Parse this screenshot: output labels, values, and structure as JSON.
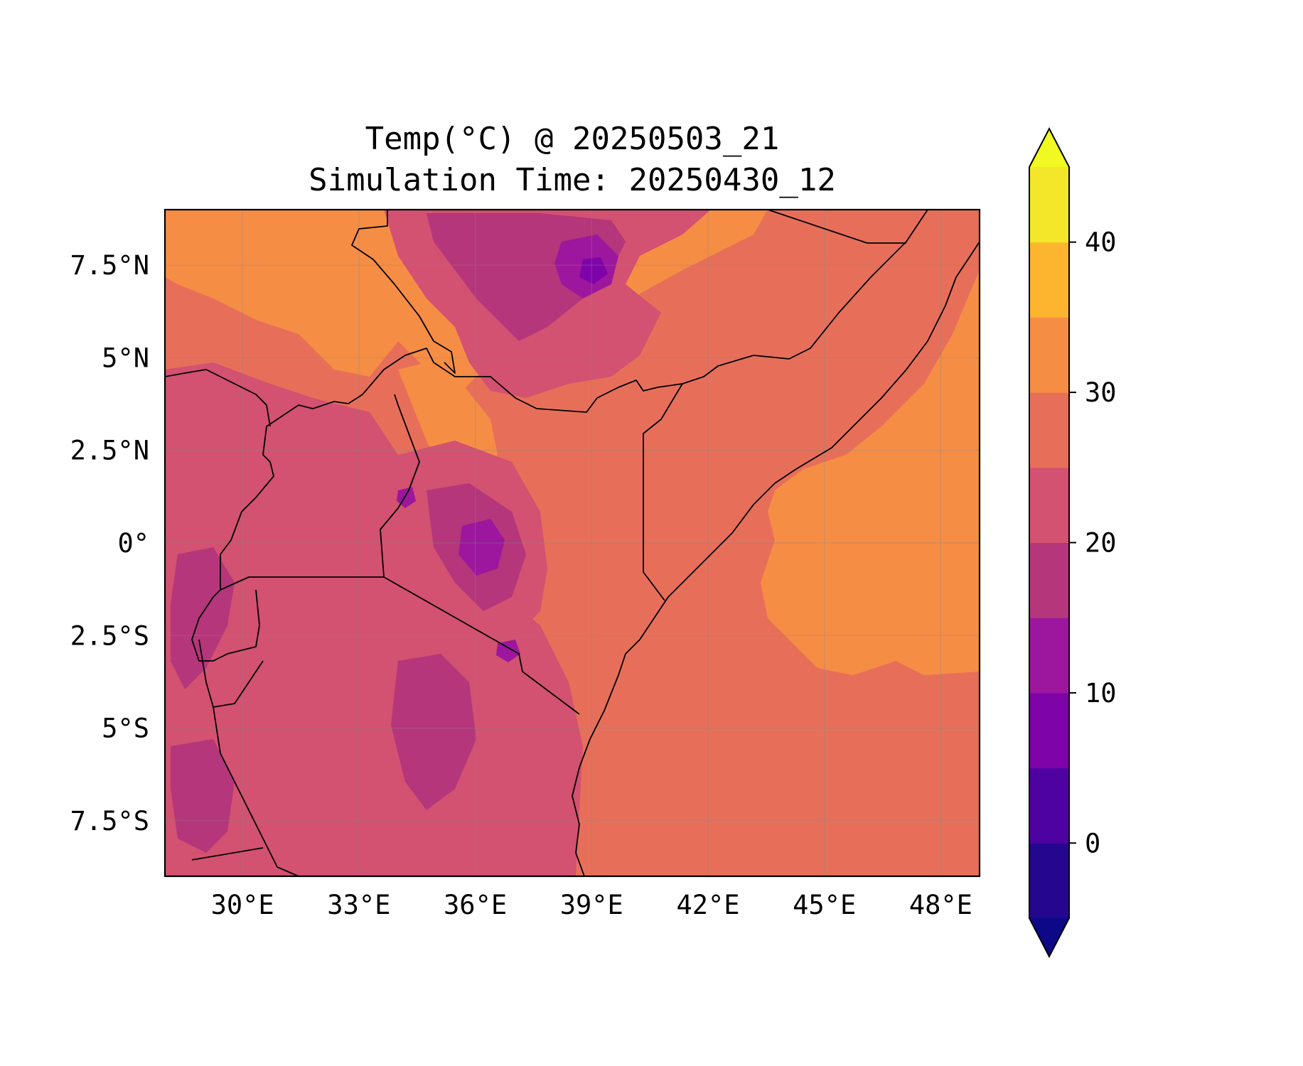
{
  "title": {
    "line1": "Temp(°C) @ 20250503_21",
    "line2": "Simulation Time: 20250430_12"
  },
  "map": {
    "lon_range": [
      28.0,
      49.0
    ],
    "lat_range": [
      -9.0,
      9.0
    ],
    "lon_ticks": [
      {
        "value": 30,
        "label": "30°E"
      },
      {
        "value": 33,
        "label": "33°E"
      },
      {
        "value": 36,
        "label": "36°E"
      },
      {
        "value": 39,
        "label": "39°E"
      },
      {
        "value": 42,
        "label": "42°E"
      },
      {
        "value": 45,
        "label": "45°E"
      },
      {
        "value": 48,
        "label": "48°E"
      }
    ],
    "lat_ticks": [
      {
        "value": 7.5,
        "label": "7.5°N"
      },
      {
        "value": 5,
        "label": "5°N"
      },
      {
        "value": 2.5,
        "label": "2.5°N"
      },
      {
        "value": 0,
        "label": "0°"
      },
      {
        "value": -2.5,
        "label": "2.5°S"
      },
      {
        "value": -5,
        "label": "5°S"
      },
      {
        "value": -7.5,
        "label": "7.5°S"
      }
    ],
    "gridlines": true
  },
  "colorbar": {
    "orientation": "vertical",
    "extend": "both",
    "levels": [
      -5,
      0,
      5,
      10,
      15,
      20,
      25,
      30,
      35,
      40,
      45
    ],
    "colors": [
      "#24068f",
      "#4e02a2",
      "#7e03a8",
      "#9c179e",
      "#b5367a",
      "#d35171",
      "#e76f5a",
      "#f68d45",
      "#fdb42f",
      "#f4e629"
    ],
    "under_color": "#0d0887",
    "over_color": "#f0f921",
    "ticks": [
      {
        "value": 0,
        "label": "0"
      },
      {
        "value": 10,
        "label": "10"
      },
      {
        "value": 20,
        "label": "20"
      },
      {
        "value": 30,
        "label": "30"
      },
      {
        "value": 40,
        "label": "40"
      }
    ]
  }
}
